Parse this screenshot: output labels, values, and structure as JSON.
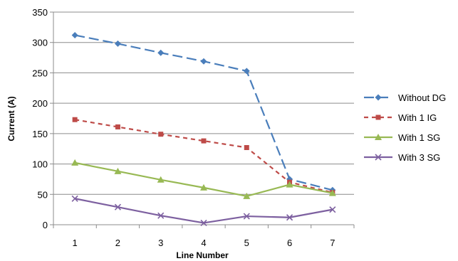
{
  "chart_data": {
    "type": "line",
    "title": "",
    "xlabel": "Line Number",
    "ylabel": "Current (A)",
    "x": [
      1,
      2,
      3,
      4,
      5,
      6,
      7
    ],
    "ylim": [
      0,
      350
    ],
    "yticks": [
      0,
      50,
      100,
      150,
      200,
      250,
      300,
      350
    ],
    "grid": "horizontal",
    "legend_position": "right",
    "series": [
      {
        "name": "Without DG",
        "values": [
          312,
          298,
          283,
          269,
          253,
          75,
          57
        ],
        "color": "#4a7ebb",
        "marker": "diamond",
        "line": "dashed"
      },
      {
        "name": "With 1 IG",
        "values": [
          173,
          161,
          149,
          138,
          127,
          70,
          53
        ],
        "color": "#be4b48",
        "marker": "square",
        "line": "dotted-dash"
      },
      {
        "name": "With 1 SG",
        "values": [
          102,
          88,
          74,
          61,
          47,
          66,
          52
        ],
        "color": "#98b954",
        "marker": "triangle",
        "line": "solid"
      },
      {
        "name": "With 3 SG",
        "values": [
          43,
          29,
          15,
          3,
          14,
          12,
          25
        ],
        "color": "#7d60a0",
        "marker": "x",
        "line": "solid"
      }
    ]
  }
}
